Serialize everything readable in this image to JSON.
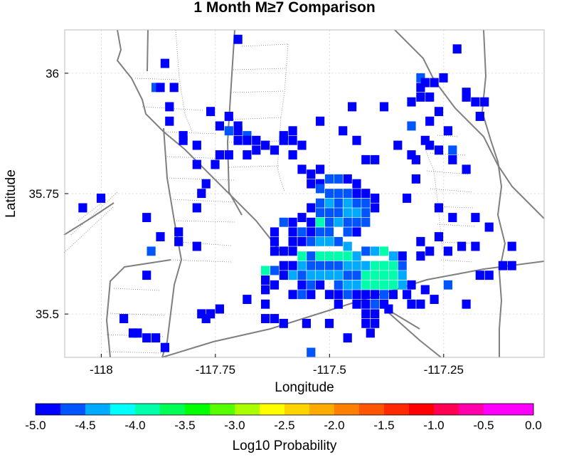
{
  "chart_data": {
    "type": "heatmap",
    "title": "1 Month M≥7 Comparison",
    "xlabel": "Longitude",
    "ylabel": "Latitude",
    "xlim": [
      -118.08,
      -117.03
    ],
    "ylim": [
      35.41,
      36.09
    ],
    "xticks": [
      {
        "value": -118,
        "label": "-118"
      },
      {
        "value": -117.75,
        "label": "-117.75"
      },
      {
        "value": -117.5,
        "label": "-117.5"
      },
      {
        "value": -117.25,
        "label": "-117.25"
      }
    ],
    "yticks": [
      {
        "value": 36,
        "label": "36"
      },
      {
        "value": 35.75,
        "label": "35.75"
      },
      {
        "value": 35.5,
        "label": "35.5"
      }
    ],
    "grid": true,
    "cell_size_deg": 0.02,
    "colorbar": {
      "label": "Log10 Probability",
      "min": -5.0,
      "max": 0.0,
      "ticks": [
        "-5.0",
        "-4.5",
        "-4.0",
        "-3.5",
        "-3.0",
        "-2.5",
        "-2.0",
        "-1.5",
        "-1.0",
        "-0.5",
        "0.0"
      ],
      "colors": [
        "#0000ff",
        "#0055ff",
        "#00aaff",
        "#00ffff",
        "#00ffaa",
        "#00ff55",
        "#00ff00",
        "#55ff00",
        "#aaff00",
        "#ffff00",
        "#ffd400",
        "#ffaa00",
        "#ff7f00",
        "#ff5500",
        "#ff2a00",
        "#ff0000",
        "#ff0055",
        "#ff00aa",
        "#ff00ff",
        "#ff00ff"
      ]
    },
    "cells": [
      [
        -117.7,
        36.07,
        -5.0
      ],
      [
        -117.86,
        36.02,
        -5.0
      ],
      [
        -117.88,
        35.97,
        -4.7
      ],
      [
        -117.87,
        35.97,
        -5.0
      ],
      [
        -117.84,
        35.97,
        -5.0
      ],
      [
        -117.85,
        35.93,
        -5.0
      ],
      [
        -117.76,
        35.92,
        -5.0
      ],
      [
        -117.85,
        35.9,
        -5.0
      ],
      [
        -117.72,
        35.91,
        -5.0
      ],
      [
        -117.7,
        35.89,
        -5.0
      ],
      [
        -117.74,
        35.89,
        -5.0
      ],
      [
        -117.72,
        35.88,
        -4.7
      ],
      [
        -117.7,
        35.88,
        -5.0
      ],
      [
        -117.68,
        35.87,
        -4.7
      ],
      [
        -117.82,
        35.87,
        -5.0
      ],
      [
        -117.82,
        35.86,
        -5.0
      ],
      [
        -117.68,
        35.86,
        -5.0
      ],
      [
        -117.7,
        35.86,
        -5.0
      ],
      [
        -117.66,
        35.86,
        -5.0
      ],
      [
        -117.6,
        35.87,
        -5.0
      ],
      [
        -117.6,
        35.86,
        -5.0
      ],
      [
        -117.58,
        35.86,
        -5.0
      ],
      [
        -117.58,
        35.88,
        -5.0
      ],
      [
        -117.66,
        35.84,
        -5.0
      ],
      [
        -117.64,
        35.85,
        -5.0
      ],
      [
        -117.62,
        35.84,
        -5.0
      ],
      [
        -117.56,
        35.85,
        -5.0
      ],
      [
        -117.58,
        35.83,
        -5.0
      ],
      [
        -117.72,
        35.83,
        -5.0
      ],
      [
        -117.68,
        35.83,
        -5.0
      ],
      [
        -117.52,
        35.9,
        -5.0
      ],
      [
        -117.47,
        35.88,
        -5.0
      ],
      [
        -117.44,
        35.86,
        -5.0
      ],
      [
        -117.42,
        35.82,
        -5.0
      ],
      [
        -117.4,
        35.82,
        -5.0
      ],
      [
        -117.32,
        35.83,
        -5.0
      ],
      [
        -117.26,
        35.84,
        -5.0
      ],
      [
        -117.23,
        35.82,
        -5.0
      ],
      [
        -117.2,
        35.8,
        -5.0
      ],
      [
        -117.31,
        35.78,
        -5.0
      ],
      [
        -117.33,
        35.74,
        -5.0
      ],
      [
        -117.26,
        35.72,
        -5.0
      ],
      [
        -117.23,
        35.7,
        -5.0
      ],
      [
        -117.18,
        35.7,
        -5.0
      ],
      [
        -117.15,
        35.68,
        -5.0
      ],
      [
        -117.18,
        35.64,
        -5.0
      ],
      [
        -117.21,
        35.64,
        -5.0
      ],
      [
        -117.26,
        35.66,
        -5.0
      ],
      [
        -117.3,
        35.65,
        -5.0
      ],
      [
        -117.28,
        35.63,
        -5.0
      ],
      [
        -117.3,
        35.62,
        -5.0
      ],
      [
        -117.1,
        35.6,
        -5.0
      ],
      [
        -117.12,
        35.6,
        -5.0
      ],
      [
        -117.15,
        35.58,
        -5.0
      ],
      [
        -117.17,
        35.58,
        -5.0
      ],
      [
        -117.1,
        35.64,
        -5.0
      ],
      [
        -117.24,
        35.56,
        -4.7
      ],
      [
        -117.29,
        35.55,
        -5.0
      ],
      [
        -117.32,
        35.56,
        -5.0
      ],
      [
        -117.33,
        35.54,
        -5.0
      ],
      [
        -117.27,
        35.53,
        -5.0
      ],
      [
        -117.3,
        35.52,
        -5.0
      ],
      [
        -117.32,
        35.52,
        -5.0
      ],
      [
        -117.2,
        35.52,
        -5.0
      ],
      [
        -117.24,
        35.63,
        -5.0
      ],
      [
        -117.3,
        35.99,
        -4.7
      ],
      [
        -117.3,
        35.97,
        -5.0
      ],
      [
        -117.27,
        35.98,
        -5.0
      ],
      [
        -117.29,
        35.98,
        -5.0
      ],
      [
        -117.25,
        35.99,
        -5.0
      ],
      [
        -117.3,
        35.95,
        -5.0
      ],
      [
        -117.28,
        35.95,
        -5.0
      ],
      [
        -117.32,
        35.94,
        -5.0
      ],
      [
        -117.2,
        35.95,
        -5.0
      ],
      [
        -117.2,
        35.96,
        -5.0
      ],
      [
        -117.18,
        35.94,
        -5.0
      ],
      [
        -117.16,
        35.94,
        -5.0
      ],
      [
        -117.22,
        36.05,
        -5.0
      ],
      [
        -117.17,
        35.91,
        -5.0
      ],
      [
        -117.23,
        35.84,
        -4.7
      ],
      [
        -117.28,
        35.85,
        -5.0
      ],
      [
        -117.31,
        35.82,
        -5.0
      ],
      [
        -117.29,
        35.86,
        -5.0
      ],
      [
        -117.35,
        35.85,
        -5.0
      ],
      [
        -117.56,
        35.8,
        -5.0
      ],
      [
        -117.54,
        35.79,
        -5.0
      ],
      [
        -117.52,
        35.8,
        -5.0
      ],
      [
        -117.54,
        35.77,
        -5.0
      ],
      [
        -117.52,
        35.77,
        -5.0
      ],
      [
        -117.5,
        35.78,
        -4.7
      ],
      [
        -117.48,
        35.78,
        -4.7
      ],
      [
        -117.46,
        35.78,
        -5.0
      ],
      [
        -117.44,
        35.77,
        -5.0
      ],
      [
        -117.52,
        35.76,
        -4.7
      ],
      [
        -117.5,
        35.75,
        -4.7
      ],
      [
        -117.48,
        35.75,
        -4.7
      ],
      [
        -117.46,
        35.75,
        -4.7
      ],
      [
        -117.44,
        35.75,
        -5.0
      ],
      [
        -117.42,
        35.75,
        -5.0
      ],
      [
        -117.4,
        35.74,
        -5.0
      ],
      [
        -117.42,
        35.73,
        -4.7
      ],
      [
        -117.4,
        35.72,
        -5.0
      ],
      [
        -117.52,
        35.73,
        -4.7
      ],
      [
        -117.5,
        35.73,
        -4.4
      ],
      [
        -117.48,
        35.73,
        -4.7
      ],
      [
        -117.46,
        35.73,
        -4.4
      ],
      [
        -117.44,
        35.73,
        -4.7
      ],
      [
        -117.54,
        35.72,
        -5.0
      ],
      [
        -117.52,
        35.71,
        -4.7
      ],
      [
        -117.5,
        35.71,
        -4.7
      ],
      [
        -117.48,
        35.71,
        -4.7
      ],
      [
        -117.46,
        35.71,
        -4.4
      ],
      [
        -117.44,
        35.71,
        -4.4
      ],
      [
        -117.42,
        35.71,
        -4.7
      ],
      [
        -117.56,
        35.7,
        -5.0
      ],
      [
        -117.54,
        35.69,
        -5.0
      ],
      [
        -117.52,
        35.69,
        -4.0
      ],
      [
        -117.5,
        35.69,
        -4.7
      ],
      [
        -117.48,
        35.69,
        -4.4
      ],
      [
        -117.46,
        35.69,
        -4.7
      ],
      [
        -117.44,
        35.69,
        -4.7
      ],
      [
        -117.42,
        35.69,
        -4.7
      ],
      [
        -117.58,
        35.69,
        -5.0
      ],
      [
        -117.6,
        35.69,
        -4.7
      ],
      [
        -117.62,
        35.67,
        -5.0
      ],
      [
        -117.58,
        35.67,
        -5.0
      ],
      [
        -117.56,
        35.67,
        -4.7
      ],
      [
        -117.54,
        35.67,
        -5.0
      ],
      [
        -117.52,
        35.67,
        -4.7
      ],
      [
        -117.5,
        35.67,
        -4.7
      ],
      [
        -117.46,
        35.67,
        -4.7
      ],
      [
        -117.44,
        35.67,
        -5.0
      ],
      [
        -117.62,
        35.65,
        -5.0
      ],
      [
        -117.58,
        35.65,
        -5.0
      ],
      [
        -117.56,
        35.65,
        -5.0
      ],
      [
        -117.54,
        35.65,
        -4.7
      ],
      [
        -117.52,
        35.65,
        -4.4
      ],
      [
        -117.5,
        35.65,
        -4.4
      ],
      [
        -117.48,
        35.65,
        -4.7
      ],
      [
        -117.46,
        35.64,
        -4.4
      ],
      [
        -117.62,
        35.63,
        -5.0
      ],
      [
        -117.6,
        35.63,
        -5.0
      ],
      [
        -117.58,
        35.63,
        -5.0
      ],
      [
        -117.56,
        35.62,
        -4.0
      ],
      [
        -117.54,
        35.62,
        -4.7
      ],
      [
        -117.52,
        35.62,
        -4.0
      ],
      [
        -117.5,
        35.62,
        -4.0
      ],
      [
        -117.48,
        35.62,
        -4.0
      ],
      [
        -117.46,
        35.62,
        -4.0
      ],
      [
        -117.44,
        35.62,
        -4.4
      ],
      [
        -117.42,
        35.63,
        -4.7
      ],
      [
        -117.4,
        35.63,
        -4.4
      ],
      [
        -117.38,
        35.63,
        -4.0
      ],
      [
        -117.36,
        35.62,
        -4.4
      ],
      [
        -117.34,
        35.62,
        -5.0
      ],
      [
        -117.6,
        35.6,
        -5.0
      ],
      [
        -117.58,
        35.6,
        -5.0
      ],
      [
        -117.56,
        35.6,
        -4.4
      ],
      [
        -117.54,
        35.6,
        -4.7
      ],
      [
        -117.52,
        35.6,
        -4.7
      ],
      [
        -117.5,
        35.6,
        -4.7
      ],
      [
        -117.48,
        35.6,
        -4.7
      ],
      [
        -117.46,
        35.6,
        -4.4
      ],
      [
        -117.44,
        35.6,
        -4.4
      ],
      [
        -117.42,
        35.6,
        -4.4
      ],
      [
        -117.4,
        35.6,
        -4.0
      ],
      [
        -117.38,
        35.6,
        -4.0
      ],
      [
        -117.36,
        35.6,
        -4.0
      ],
      [
        -117.34,
        35.6,
        -4.7
      ],
      [
        -117.64,
        35.59,
        -4.0
      ],
      [
        -117.62,
        35.59,
        -4.7
      ],
      [
        -117.6,
        35.58,
        -5.0
      ],
      [
        -117.58,
        35.58,
        -4.4
      ],
      [
        -117.56,
        35.58,
        -4.7
      ],
      [
        -117.54,
        35.58,
        -4.4
      ],
      [
        -117.52,
        35.58,
        -4.4
      ],
      [
        -117.5,
        35.58,
        -4.4
      ],
      [
        -117.48,
        35.58,
        -4.4
      ],
      [
        -117.46,
        35.58,
        -4.7
      ],
      [
        -117.44,
        35.58,
        -4.7
      ],
      [
        -117.42,
        35.58,
        -4.0
      ],
      [
        -117.4,
        35.58,
        -4.0
      ],
      [
        -117.38,
        35.58,
        -4.0
      ],
      [
        -117.36,
        35.58,
        -4.0
      ],
      [
        -117.34,
        35.58,
        -4.4
      ],
      [
        -117.64,
        35.57,
        -5.0
      ],
      [
        -117.62,
        35.56,
        -5.0
      ],
      [
        -117.56,
        35.56,
        -5.0
      ],
      [
        -117.54,
        35.56,
        -4.7
      ],
      [
        -117.52,
        35.56,
        -5.0
      ],
      [
        -117.48,
        35.56,
        -4.7
      ],
      [
        -117.46,
        35.56,
        -4.4
      ],
      [
        -117.44,
        35.56,
        -4.4
      ],
      [
        -117.42,
        35.56,
        -4.0
      ],
      [
        -117.4,
        35.56,
        -4.0
      ],
      [
        -117.38,
        35.56,
        -4.0
      ],
      [
        -117.36,
        35.56,
        -4.0
      ],
      [
        -117.34,
        35.56,
        -4.4
      ],
      [
        -117.64,
        35.55,
        -5.0
      ],
      [
        -117.58,
        35.54,
        -5.0
      ],
      [
        -117.56,
        35.54,
        -4.7
      ],
      [
        -117.54,
        35.54,
        -5.0
      ],
      [
        -117.5,
        35.54,
        -5.0
      ],
      [
        -117.48,
        35.54,
        -5.0
      ],
      [
        -117.46,
        35.54,
        -4.7
      ],
      [
        -117.44,
        35.54,
        -5.0
      ],
      [
        -117.42,
        35.54,
        -5.0
      ],
      [
        -117.4,
        35.54,
        -5.0
      ],
      [
        -117.38,
        35.54,
        -4.7
      ],
      [
        -117.36,
        35.54,
        -5.0
      ],
      [
        -117.48,
        35.52,
        -5.0
      ],
      [
        -117.44,
        35.52,
        -5.0
      ],
      [
        -117.42,
        35.52,
        -5.0
      ],
      [
        -117.4,
        35.52,
        -4.7
      ],
      [
        -117.38,
        35.52,
        -5.0
      ],
      [
        -117.42,
        35.5,
        -5.0
      ],
      [
        -117.4,
        35.5,
        -5.0
      ],
      [
        -117.37,
        35.51,
        -5.0
      ],
      [
        -117.64,
        35.49,
        -5.0
      ],
      [
        -117.62,
        35.49,
        -5.0
      ],
      [
        -117.6,
        35.48,
        -5.0
      ],
      [
        -117.55,
        35.48,
        -5.0
      ],
      [
        -117.5,
        35.48,
        -5.0
      ],
      [
        -117.42,
        35.48,
        -5.0
      ],
      [
        -117.4,
        35.48,
        -5.0
      ],
      [
        -117.41,
        35.46,
        -5.0
      ],
      [
        -117.46,
        35.45,
        -5.0
      ],
      [
        -117.54,
        35.42,
        -4.7
      ],
      [
        -117.68,
        35.53,
        -5.0
      ],
      [
        -117.74,
        35.51,
        -5.0
      ],
      [
        -117.77,
        35.49,
        -5.0
      ],
      [
        -117.78,
        35.5,
        -5.0
      ],
      [
        -117.76,
        35.5,
        -5.0
      ],
      [
        -117.64,
        35.52,
        -5.0
      ],
      [
        -117.95,
        35.49,
        -5.0
      ],
      [
        -117.93,
        35.46,
        -5.0
      ],
      [
        -117.92,
        35.46,
        -5.0
      ],
      [
        -117.9,
        35.45,
        -5.0
      ],
      [
        -117.88,
        35.45,
        -5.0
      ],
      [
        -117.86,
        35.43,
        -5.0
      ],
      [
        -117.9,
        35.58,
        -5.0
      ],
      [
        -117.9,
        35.7,
        -5.0
      ],
      [
        -117.89,
        35.63,
        -4.7
      ],
      [
        -117.87,
        35.66,
        -5.0
      ],
      [
        -117.83,
        35.67,
        -5.0
      ],
      [
        -117.83,
        35.65,
        -5.0
      ],
      [
        -117.79,
        35.64,
        -5.0
      ],
      [
        -117.79,
        35.72,
        -5.0
      ],
      [
        -117.78,
        35.75,
        -5.0
      ],
      [
        -117.77,
        35.77,
        -5.0
      ],
      [
        -117.75,
        35.81,
        -5.0
      ],
      [
        -117.79,
        35.81,
        -5.0
      ],
      [
        -117.79,
        35.85,
        -5.0
      ],
      [
        -117.74,
        35.83,
        -5.0
      ],
      [
        -118.04,
        35.72,
        -5.0
      ],
      [
        -118.0,
        35.74,
        -5.0
      ],
      [
        -117.45,
        35.93,
        -5.0
      ],
      [
        -117.38,
        35.93,
        -5.0
      ],
      [
        -117.32,
        35.89,
        -4.7
      ],
      [
        -117.26,
        35.92,
        -5.0
      ],
      [
        -117.28,
        35.9,
        -5.0
      ],
      [
        -117.24,
        35.88,
        -5.0
      ]
    ]
  }
}
